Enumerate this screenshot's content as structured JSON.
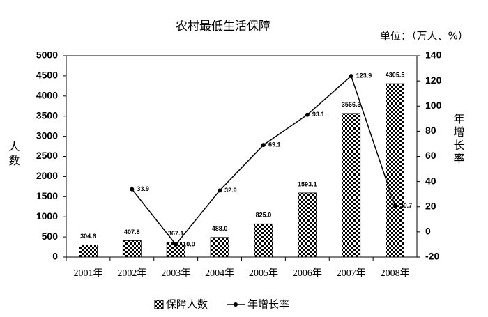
{
  "chart_data": {
    "type": "bar",
    "title": "农村最低生活保障",
    "unit_label": "单位：（万人、%）",
    "y_label": "人数",
    "y2_label": "年增长率",
    "categories": [
      "2001年",
      "2002年",
      "2003年",
      "2004年",
      "2005年",
      "2006年",
      "2007年",
      "2008年"
    ],
    "series": [
      {
        "name": "保障人数",
        "type": "bar",
        "color": "#000000",
        "values": [
          304.6,
          407.8,
          367.1,
          488.0,
          825.0,
          1593.1,
          3566.3,
          4305.5
        ],
        "value_labels": [
          "304.6",
          "407.8",
          "367.1",
          "488.0",
          "825.0",
          "1593.1",
          "3566.3",
          "4305.5"
        ]
      },
      {
        "name": "年增长率",
        "type": "line",
        "axis": "y2",
        "color": "#000000",
        "values": [
          null,
          33.9,
          -10.0,
          32.9,
          69.1,
          93.1,
          123.9,
          20.7
        ],
        "value_labels": [
          null,
          "33.9",
          "-10.0",
          "32.9",
          "69.1",
          "93.1",
          "123.9",
          "20.7"
        ]
      }
    ],
    "ylim": [
      0,
      5000
    ],
    "yticks": [
      0,
      500,
      1000,
      1500,
      2000,
      2500,
      3000,
      3500,
      4000,
      4500,
      5000
    ],
    "y2lim": [
      -20,
      140
    ],
    "y2ticks": [
      -20,
      0,
      20,
      40,
      60,
      80,
      100,
      120,
      140
    ],
    "legend": "bottom"
  }
}
